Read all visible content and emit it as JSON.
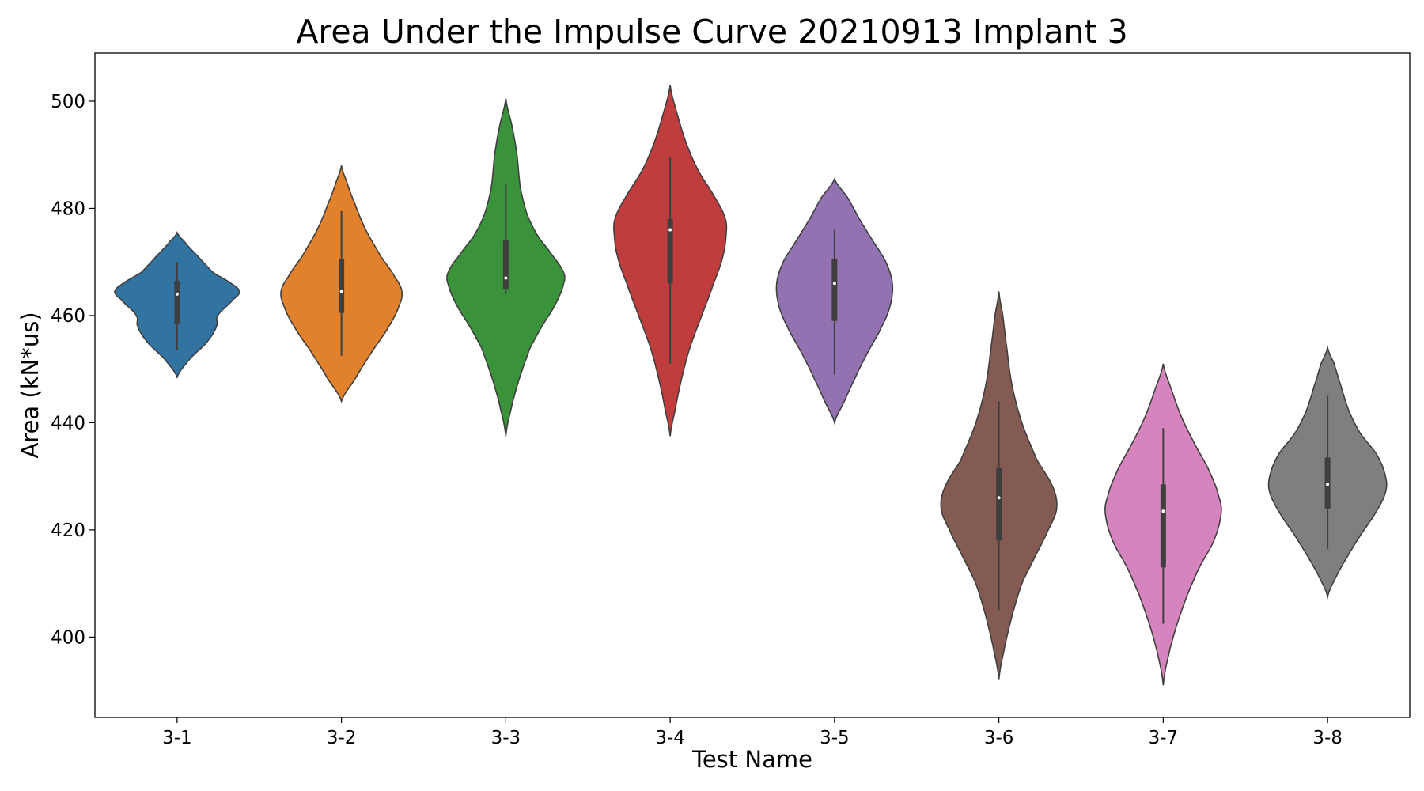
{
  "chart_data": {
    "type": "violin",
    "title": "Area Under the Impulse Curve 20210913 Implant 3",
    "xlabel": "Test Name",
    "ylabel": "Area (kN*us)",
    "ylim": [
      385,
      509
    ],
    "yticks": [
      400,
      420,
      440,
      460,
      480,
      500
    ],
    "grid": false,
    "categories": [
      "3-1",
      "3-2",
      "3-3",
      "3-4",
      "3-5",
      "3-6",
      "3-7",
      "3-8"
    ],
    "colors": [
      "#3274a1",
      "#e1812c",
      "#3a923a",
      "#c03d3e",
      "#9372b2",
      "#845b53",
      "#d684bd",
      "#7f7f7f"
    ],
    "series": [
      {
        "min": 448.5,
        "max": 475.5,
        "q1": 458.5,
        "median": 464,
        "q3": 466.5,
        "whisker_low": 453.5,
        "whisker_high": 470,
        "profile": [
          [
            448.5,
            0
          ],
          [
            452,
            0.2
          ],
          [
            455,
            0.45
          ],
          [
            458,
            0.6
          ],
          [
            460,
            0.62
          ],
          [
            463,
            0.85
          ],
          [
            464.5,
            0.95
          ],
          [
            466,
            0.82
          ],
          [
            468,
            0.55
          ],
          [
            471,
            0.32
          ],
          [
            474,
            0.1
          ],
          [
            475.5,
            0
          ]
        ]
      },
      {
        "min": 444,
        "max": 488,
        "q1": 460.5,
        "median": 464.5,
        "q3": 470.5,
        "whisker_low": 452.5,
        "whisker_high": 479.5,
        "profile": [
          [
            444,
            0
          ],
          [
            448,
            0.2
          ],
          [
            453,
            0.45
          ],
          [
            458,
            0.72
          ],
          [
            462,
            0.88
          ],
          [
            464.5,
            0.92
          ],
          [
            467,
            0.82
          ],
          [
            471,
            0.6
          ],
          [
            476,
            0.37
          ],
          [
            481,
            0.2
          ],
          [
            485,
            0.08
          ],
          [
            488,
            0
          ]
        ]
      },
      {
        "min": 437.5,
        "max": 500.5,
        "q1": 465,
        "median": 467,
        "q3": 474,
        "whisker_low": 464,
        "whisker_high": 484.5,
        "profile": [
          [
            437.5,
            0
          ],
          [
            442,
            0.07
          ],
          [
            448,
            0.2
          ],
          [
            454,
            0.37
          ],
          [
            458,
            0.55
          ],
          [
            462,
            0.75
          ],
          [
            466,
            0.88
          ],
          [
            468,
            0.88
          ],
          [
            471,
            0.72
          ],
          [
            475,
            0.48
          ],
          [
            479,
            0.32
          ],
          [
            484,
            0.22
          ],
          [
            490,
            0.17
          ],
          [
            495,
            0.1
          ],
          [
            500.5,
            0
          ]
        ]
      },
      {
        "min": 437.5,
        "max": 503,
        "q1": 466,
        "median": 476,
        "q3": 478,
        "whisker_low": 451,
        "whisker_high": 489.5,
        "profile": [
          [
            437.5,
            0
          ],
          [
            442,
            0.07
          ],
          [
            448,
            0.17
          ],
          [
            454,
            0.3
          ],
          [
            460,
            0.48
          ],
          [
            466,
            0.66
          ],
          [
            471,
            0.8
          ],
          [
            475,
            0.85
          ],
          [
            478,
            0.84
          ],
          [
            482,
            0.68
          ],
          [
            487,
            0.43
          ],
          [
            492,
            0.25
          ],
          [
            497,
            0.12
          ],
          [
            503,
            0
          ]
        ]
      },
      {
        "min": 440,
        "max": 485.5,
        "q1": 459,
        "median": 466,
        "q3": 470.5,
        "whisker_low": 449,
        "whisker_high": 476,
        "profile": [
          [
            440,
            0
          ],
          [
            444,
            0.15
          ],
          [
            448,
            0.3
          ],
          [
            453,
            0.5
          ],
          [
            458,
            0.72
          ],
          [
            462,
            0.85
          ],
          [
            466,
            0.88
          ],
          [
            470,
            0.78
          ],
          [
            474,
            0.58
          ],
          [
            478,
            0.38
          ],
          [
            482,
            0.2
          ],
          [
            485.5,
            0
          ]
        ]
      },
      {
        "min": 392,
        "max": 464.5,
        "q1": 418,
        "median": 426,
        "q3": 431.5,
        "whisker_low": 405,
        "whisker_high": 444,
        "profile": [
          [
            392,
            0
          ],
          [
            397,
            0.07
          ],
          [
            404,
            0.2
          ],
          [
            410,
            0.35
          ],
          [
            415,
            0.55
          ],
          [
            420,
            0.75
          ],
          [
            424,
            0.88
          ],
          [
            428,
            0.82
          ],
          [
            433,
            0.58
          ],
          [
            440,
            0.35
          ],
          [
            447,
            0.2
          ],
          [
            454,
            0.12
          ],
          [
            460,
            0.06
          ],
          [
            464.5,
            0
          ]
        ]
      },
      {
        "min": 391,
        "max": 451,
        "q1": 413,
        "median": 423.5,
        "q3": 428.5,
        "whisker_low": 402.5,
        "whisker_high": 439,
        "profile": [
          [
            391,
            0
          ],
          [
            396,
            0.07
          ],
          [
            402,
            0.2
          ],
          [
            408,
            0.37
          ],
          [
            413,
            0.55
          ],
          [
            418,
            0.77
          ],
          [
            423,
            0.88
          ],
          [
            426,
            0.85
          ],
          [
            431,
            0.7
          ],
          [
            436,
            0.48
          ],
          [
            441,
            0.28
          ],
          [
            446,
            0.13
          ],
          [
            451,
            0
          ]
        ]
      },
      {
        "min": 407.5,
        "max": 454,
        "q1": 424,
        "median": 428.5,
        "q3": 433.5,
        "whisker_low": 416.5,
        "whisker_high": 445,
        "profile": [
          [
            407.5,
            0
          ],
          [
            411,
            0.12
          ],
          [
            415,
            0.3
          ],
          [
            419,
            0.5
          ],
          [
            423,
            0.72
          ],
          [
            427,
            0.88
          ],
          [
            430,
            0.88
          ],
          [
            434,
            0.75
          ],
          [
            438,
            0.5
          ],
          [
            442,
            0.33
          ],
          [
            447,
            0.2
          ],
          [
            451,
            0.1
          ],
          [
            454,
            0
          ]
        ]
      }
    ]
  }
}
